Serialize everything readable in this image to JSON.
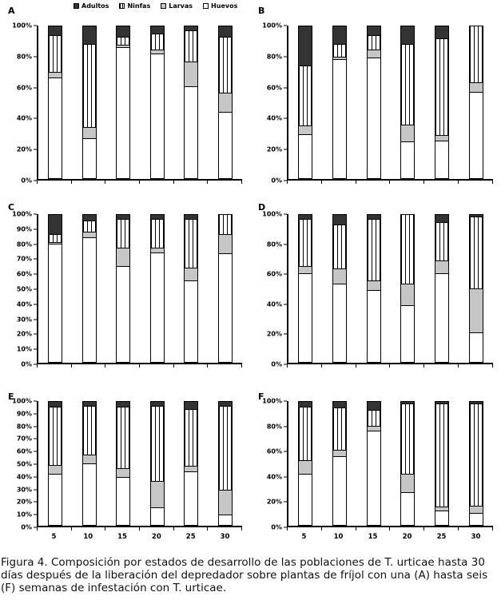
{
  "legend": {
    "items": [
      {
        "label": "Adultos",
        "swatch": "solid-dark",
        "color": "#333333"
      },
      {
        "label": "Ninfas",
        "swatch": "vertical-stripes",
        "color": "#000000"
      },
      {
        "label": "Larvas",
        "swatch": "solid-gray",
        "color": "#c6c6c6"
      },
      {
        "label": "Huevos",
        "swatch": "solid-white",
        "color": "#ffffff"
      }
    ]
  },
  "caption": "Figura 4. Composición por estados de desarrollo de las poblaciones de T. urticae hasta 30 días después de la liberación del depredador sobre plantas de fríjol con una (A) hasta seis (F) semanas de infestación con T. urticae.",
  "colors": {
    "adultos": "#333333",
    "larvas": "#c6c6c6",
    "huevos": "#ffffff",
    "stripe": "#000000",
    "axis": "#000000",
    "background": "#ffffff"
  },
  "chart_data": [
    {
      "panel": "A",
      "type": "bar",
      "stacked": true,
      "unit": "%",
      "categories": [
        "5",
        "10",
        "15",
        "20",
        "25",
        "30"
      ],
      "show_x_labels": false,
      "ylim": [
        0,
        100
      ],
      "y_ticks": [
        "0%",
        "20%",
        "40%",
        "60%",
        "80%",
        "100%"
      ],
      "series": [
        {
          "name": "Huevos",
          "values": [
            67,
            26,
            87,
            83,
            61,
            44
          ]
        },
        {
          "name": "Larvas",
          "values": [
            3,
            7,
            1.5,
            2,
            16,
            12
          ]
        },
        {
          "name": "Ninfas",
          "values": [
            24,
            55,
            4.5,
            10,
            20.5,
            37
          ]
        },
        {
          "name": "Adultos",
          "values": [
            6,
            12,
            7,
            5,
            2.5,
            7
          ]
        }
      ]
    },
    {
      "panel": "B",
      "type": "bar",
      "stacked": true,
      "unit": "%",
      "categories": [
        "5",
        "10",
        "15",
        "20",
        "25",
        "30"
      ],
      "show_x_labels": false,
      "ylim": [
        0,
        100
      ],
      "y_ticks": [
        "0%",
        "20%",
        "40%",
        "60%",
        "80%",
        "100%"
      ],
      "series": [
        {
          "name": "Huevos",
          "values": [
            29,
            79,
            80,
            24,
            24.5,
            57
          ]
        },
        {
          "name": "Larvas",
          "values": [
            5,
            1,
            5,
            11,
            3.5,
            6
          ]
        },
        {
          "name": "Ninfas",
          "values": [
            40,
            8,
            9,
            53,
            64,
            37
          ]
        },
        {
          "name": "Adultos",
          "values": [
            26,
            12,
            6,
            12,
            8,
            0
          ]
        }
      ]
    },
    {
      "panel": "C",
      "type": "bar",
      "stacked": true,
      "unit": "%",
      "categories": [
        "5",
        "10",
        "15",
        "20",
        "25",
        "30"
      ],
      "show_x_labels": false,
      "ylim": [
        0,
        100
      ],
      "y_ticks": [
        "0%",
        "10%",
        "20%",
        "30%",
        "40%",
        "50%",
        "60%",
        "70%",
        "80%",
        "90%",
        "100%"
      ],
      "series": [
        {
          "name": "Huevos",
          "values": [
            81,
            85.5,
            66,
            75,
            56,
            74
          ]
        },
        {
          "name": "Larvas",
          "values": [
            1,
            3.5,
            12,
            3,
            8,
            13
          ]
        },
        {
          "name": "Ninfas",
          "values": [
            5,
            7,
            19,
            19,
            33,
            13
          ]
        },
        {
          "name": "Adultos",
          "values": [
            13,
            4,
            3,
            3,
            3,
            0
          ]
        }
      ]
    },
    {
      "panel": "D",
      "type": "bar",
      "stacked": true,
      "unit": "%",
      "categories": [
        "5",
        "10",
        "15",
        "20",
        "25",
        "30"
      ],
      "show_x_labels": false,
      "ylim": [
        0,
        100
      ],
      "y_ticks": [
        "0%",
        "20%",
        "40%",
        "60%",
        "80%",
        "100%"
      ],
      "series": [
        {
          "name": "Huevos",
          "values": [
            61,
            53.5,
            49,
            38.5,
            61,
            20
          ]
        },
        {
          "name": "Larvas",
          "values": [
            4,
            10,
            6.5,
            14.5,
            8,
            29.5
          ]
        },
        {
          "name": "Ninfas",
          "values": [
            32,
            30,
            42,
            47,
            26,
            49.5
          ]
        },
        {
          "name": "Adultos",
          "values": [
            3,
            6.5,
            2.5,
            0,
            5,
            1
          ]
        }
      ]
    },
    {
      "panel": "E",
      "type": "bar",
      "stacked": true,
      "unit": "%",
      "categories": [
        "5",
        "10",
        "15",
        "20",
        "25",
        "30"
      ],
      "show_x_labels": true,
      "ylim": [
        0,
        100
      ],
      "y_ticks": [
        "0%",
        "10%",
        "20%",
        "30%",
        "40%",
        "50%",
        "60%",
        "70%",
        "80%",
        "90%",
        "100%"
      ],
      "series": [
        {
          "name": "Huevos",
          "values": [
            42,
            50.5,
            39,
            14,
            44,
            8
          ]
        },
        {
          "name": "Larvas",
          "values": [
            6.5,
            6.5,
            6.5,
            21,
            4,
            20
          ]
        },
        {
          "name": "Ninfas",
          "values": [
            47.5,
            40,
            50.5,
            62,
            46,
            69
          ]
        },
        {
          "name": "Adultos",
          "values": [
            4,
            3,
            4,
            3,
            6,
            3
          ]
        }
      ]
    },
    {
      "panel": "F",
      "type": "bar",
      "stacked": true,
      "unit": "%",
      "categories": [
        "5",
        "10",
        "15",
        "20",
        "25",
        "30"
      ],
      "show_x_labels": true,
      "ylim": [
        0,
        100
      ],
      "y_ticks": [
        "0%",
        "20%",
        "40%",
        "60%",
        "80%",
        "100%"
      ],
      "series": [
        {
          "name": "Huevos",
          "values": [
            42,
            56,
            77.5,
            26.5,
            11,
            9
          ]
        },
        {
          "name": "Larvas",
          "values": [
            10,
            5,
            3,
            14.5,
            3,
            5.5
          ]
        },
        {
          "name": "Ninfas",
          "values": [
            44,
            34.5,
            13,
            58,
            84.5,
            84
          ]
        },
        {
          "name": "Adultos",
          "values": [
            4,
            4.5,
            6.5,
            1,
            1.5,
            1.5
          ]
        }
      ]
    }
  ]
}
